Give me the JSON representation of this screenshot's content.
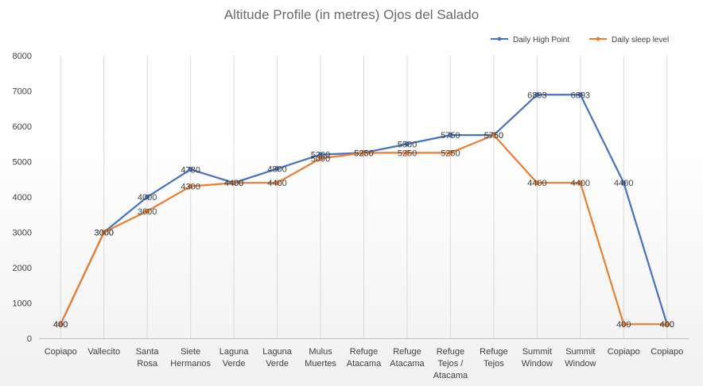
{
  "chart_data": {
    "type": "line",
    "title": "Altitude Profile (in metres) Ojos del Salado",
    "xlabel": "",
    "ylabel": "",
    "ylim": [
      0,
      8000
    ],
    "yticks": [
      0,
      1000,
      2000,
      3000,
      4000,
      5000,
      6000,
      7000,
      8000
    ],
    "grid": "vertical",
    "legend_position": "top-right",
    "categories": [
      [
        "Copiapo"
      ],
      [
        "Vallecito"
      ],
      [
        "Santa",
        "Rosa"
      ],
      [
        "Siete",
        "Hermanos"
      ],
      [
        "Laguna",
        "Verde"
      ],
      [
        "Laguna",
        "Verde"
      ],
      [
        "Mulus",
        "Muertes"
      ],
      [
        "Refuge",
        "Atacama"
      ],
      [
        "Refuge",
        "Atacama"
      ],
      [
        "Refuge",
        "Tejos /",
        "Atacama"
      ],
      [
        "Refuge",
        "Tejos"
      ],
      [
        "Summit",
        "Window"
      ],
      [
        "Summit",
        "Window"
      ],
      [
        "Copiapo"
      ],
      [
        "Copiapo"
      ]
    ],
    "series": [
      {
        "name": "Daily High Point",
        "color": "#4472c4",
        "values": [
          400,
          3000,
          4000,
          4780,
          4400,
          4800,
          5200,
          5250,
          5500,
          5750,
          5750,
          6893,
          6893,
          4400,
          400
        ],
        "labels": [
          "400",
          "3000",
          "4000",
          "4780",
          "4400",
          "4800",
          "5200",
          "5250",
          "5500",
          "5750",
          "5750",
          "6893",
          "6893",
          "4400",
          "400"
        ]
      },
      {
        "name": "Daily sleep level",
        "color": "#ed7d31",
        "values": [
          400,
          3000,
          3600,
          4300,
          4400,
          4400,
          5090,
          5250,
          5250,
          5250,
          5750,
          4400,
          4400,
          400,
          400
        ],
        "labels": [
          "400",
          "3000",
          "3600",
          "4300",
          "4400",
          "4400",
          "5090",
          "5250",
          "5250",
          "5250",
          "5750",
          "4400",
          "4400",
          "400",
          "400"
        ]
      }
    ]
  }
}
